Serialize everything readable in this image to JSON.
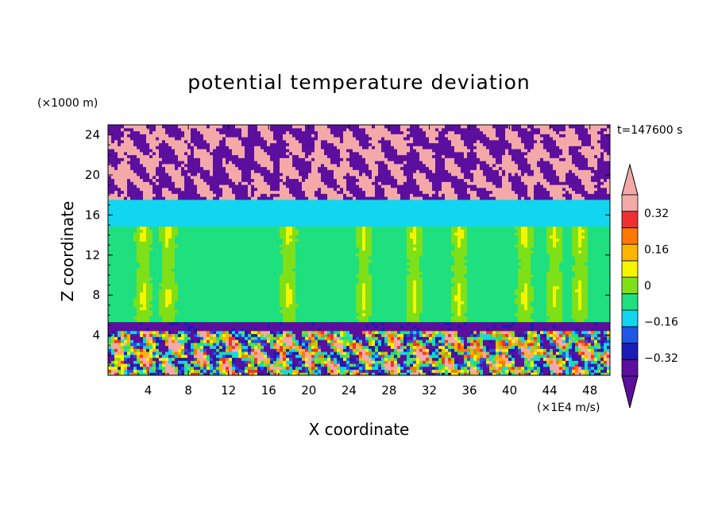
{
  "chart_data": {
    "type": "heatmap",
    "title": "potential temperature deviation",
    "xlabel": "X coordinate",
    "ylabel": "Z coordinate",
    "x_unit": "(×1E4 m/s)",
    "y_unit": "(×1000 m)",
    "time_label": "t=147600 s",
    "xlim": [
      0,
      50
    ],
    "ylim": [
      0,
      25
    ],
    "x_ticks": [
      4,
      8,
      12,
      16,
      20,
      24,
      28,
      32,
      36,
      40,
      44,
      48
    ],
    "y_ticks": [
      4,
      8,
      12,
      16,
      20,
      24
    ],
    "colorbar": {
      "levels": [
        -0.4,
        -0.32,
        -0.24,
        -0.16,
        -0.08,
        0,
        0.08,
        0.16,
        0.24,
        0.32,
        0.4
      ],
      "labeled_levels": [
        "0.32",
        "0.16",
        "0",
        "-0.16",
        "-0.32"
      ],
      "colors": [
        "#5c0f9e",
        "#1b1bb5",
        "#1e56e6",
        "#12d6f0",
        "#1ee07e",
        "#7fe018",
        "#f5f500",
        "#ffb400",
        "#ff7800",
        "#f03030",
        "#f4a9a9"
      ],
      "under_color": "#5c0f9e",
      "over_color": "#f4a9a9"
    },
    "bands": [
      {
        "z_range": [
          17.5,
          25
        ],
        "description_value": "alternating",
        "dominant": [
          -0.4,
          0.4
        ]
      },
      {
        "z_range": [
          15,
          17.5
        ],
        "value": -0.12
      },
      {
        "z_range": [
          5.5,
          15
        ],
        "value": -0.02
      },
      {
        "z_range": [
          4.5,
          5.5
        ],
        "value": -0.35
      },
      {
        "z_range": [
          0,
          4.5
        ],
        "dominant": [
          -0.4,
          0.3
        ]
      }
    ]
  }
}
